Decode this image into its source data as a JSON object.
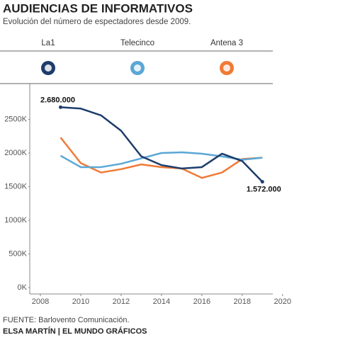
{
  "chart_data": {
    "type": "line",
    "title": "AUDIENCIAS DE INFORMATIVOS",
    "subtitle": "Evolución del número de espectadores desde 2009.",
    "source": "FUENTE: Barlovento Comunicación.",
    "credit": "ELSA MARTÍN | EL MUNDO GRÁFICOS",
    "x": [
      2009,
      2010,
      2011,
      2012,
      2013,
      2014,
      2015,
      2016,
      2017,
      2018,
      2019
    ],
    "series": [
      {
        "name": "La1",
        "color": "#1d3d6b",
        "values": [
          2680000,
          2660000,
          2560000,
          2330000,
          1950000,
          1820000,
          1770000,
          1790000,
          1990000,
          1880000,
          1572000
        ],
        "value_labels": [
          "2.680.000",
          null,
          null,
          null,
          null,
          null,
          null,
          null,
          null,
          null,
          "1.572.000"
        ]
      },
      {
        "name": "Telecinco",
        "color": "#5ba7d6",
        "values": [
          1960000,
          1790000,
          1790000,
          1840000,
          1920000,
          2000000,
          2010000,
          1990000,
          1950000,
          1900000,
          1930000
        ]
      },
      {
        "name": "Antena 3",
        "color": "#f07a35",
        "values": [
          2230000,
          1850000,
          1710000,
          1760000,
          1830000,
          1790000,
          1770000,
          1630000,
          1710000,
          1910000,
          1930000
        ]
      }
    ],
    "xlim": [
      2008,
      2020.5
    ],
    "xticks": [
      2008,
      2010,
      2012,
      2014,
      2016,
      2018,
      2020
    ],
    "ylim": [
      0,
      3000000
    ],
    "yticks": [
      {
        "value": 0,
        "label": "0K"
      },
      {
        "value": 500000,
        "label": "500K"
      },
      {
        "value": 1000000,
        "label": "1000K"
      },
      {
        "value": 1500000,
        "label": "1500K"
      },
      {
        "value": 2000000,
        "label": "2000K"
      },
      {
        "value": 2500000,
        "label": "2500K"
      }
    ]
  }
}
